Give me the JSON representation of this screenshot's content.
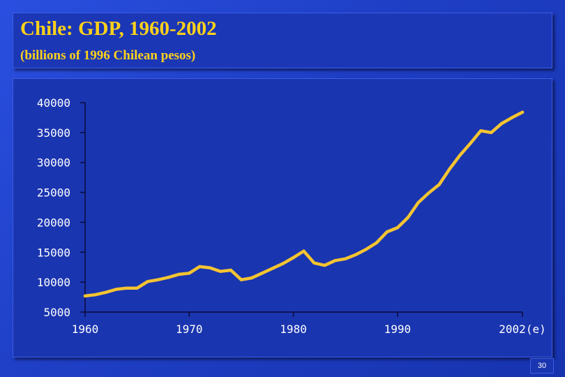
{
  "slide": {
    "title": "Chile: GDP, 1960-2002",
    "subtitle": "(billions of 1996 Chilean pesos)",
    "page_number": "30",
    "colors": {
      "background": "#1f3fc6",
      "title_text": "#ffd21a",
      "line": "#f5c431",
      "axis_text": "#ffffff"
    }
  },
  "chart_data": {
    "type": "line",
    "title": "Chile: GDP, 1960-2002",
    "subtitle": "(billions of 1996 Chilean pesos)",
    "xlabel": "",
    "ylabel": "",
    "xlim": [
      1960,
      2002
    ],
    "ylim": [
      5000,
      40000
    ],
    "x_ticks": [
      1960,
      1970,
      1980,
      1990,
      2002
    ],
    "x_tick_labels": [
      "1960",
      "1970",
      "1980",
      "1990",
      "2002(e)"
    ],
    "y_ticks": [
      5000,
      10000,
      15000,
      20000,
      25000,
      30000,
      35000,
      40000
    ],
    "y_tick_labels": [
      "5000",
      "10000",
      "15000",
      "20000",
      "25000",
      "30000",
      "35000",
      "40000"
    ],
    "grid": false,
    "legend": "none",
    "series": [
      {
        "x": [
          1960,
          1961,
          1962,
          1963,
          1964,
          1965,
          1966,
          1967,
          1968,
          1969,
          1970,
          1971,
          1972,
          1973,
          1974,
          1975,
          1976,
          1977,
          1978,
          1979,
          1980,
          1981,
          1982,
          1983,
          1984,
          1985,
          1986,
          1987,
          1988,
          1989,
          1990,
          1991,
          1992,
          1993,
          1994,
          1995,
          1996,
          1997,
          1998,
          1999,
          2000,
          2001,
          2002
        ],
        "values": [
          7700,
          7900,
          8300,
          8800,
          9000,
          9000,
          10100,
          10400,
          10800,
          11300,
          11500,
          12600,
          12400,
          11800,
          12000,
          10400,
          10700,
          11500,
          12300,
          13100,
          14100,
          15200,
          13200,
          12800,
          13600,
          13900,
          14600,
          15500,
          16600,
          18400,
          19100,
          20800,
          23300,
          24900,
          26300,
          28900,
          31200,
          33200,
          35300,
          35000,
          36500,
          37500,
          38400
        ]
      }
    ]
  }
}
